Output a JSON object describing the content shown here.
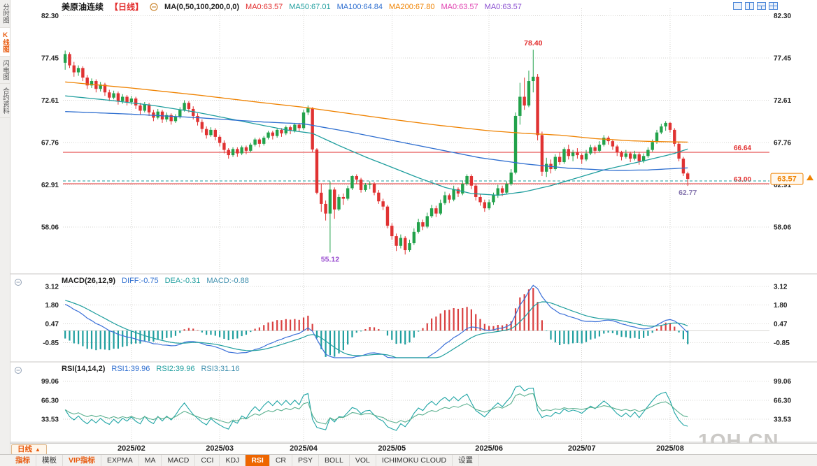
{
  "window": {
    "watermark": "1QH.CN"
  },
  "sidebar": {
    "tabs": [
      {
        "label": "分时图",
        "active": false
      },
      {
        "label": "K线图",
        "active": true
      },
      {
        "label": "闪电图",
        "active": false
      },
      {
        "label": "合约资料",
        "active": false
      }
    ]
  },
  "header": {
    "symbol": "美原油连续",
    "period_tag": "【日线】",
    "ma_settings": "MA(0,50,100,200,0,0)",
    "ma_values": [
      {
        "label": "MA0:63.57",
        "color": "#e22c2c"
      },
      {
        "label": "MA50:67.01",
        "color": "#1f9e9e"
      },
      {
        "label": "MA100:64.84",
        "color": "#2f6fd0"
      },
      {
        "label": "MA200:67.80",
        "color": "#ef8200"
      },
      {
        "label": "MA0:63.57",
        "color": "#e040b0"
      },
      {
        "label": "MA0:63.57",
        "color": "#8a4fd0"
      }
    ],
    "layout_icons": [
      "single-view",
      "dual-view",
      "triple-view",
      "quad-view"
    ]
  },
  "chart_data": {
    "type": "candlestick",
    "symbol": "美原油连续",
    "period": "日线",
    "total_slots": 160,
    "x_labels": [
      "2025/02",
      "2025/03",
      "2025/04",
      "2025/05",
      "2025/06",
      "2025/07",
      "2025/08"
    ],
    "month_start_indices": [
      15,
      35,
      54,
      74,
      96,
      117,
      137
    ],
    "price_ticks": [
      "82.30",
      "77.45",
      "72.61",
      "67.76",
      "62.91",
      "58.06"
    ],
    "colors": {
      "up": "#22a24b",
      "down": "#e03232"
    },
    "candles": [
      [
        76.9,
        78.3,
        76.1,
        77.9
      ],
      [
        77.9,
        78.1,
        76.3,
        76.6
      ],
      [
        76.6,
        77.0,
        75.3,
        75.8
      ],
      [
        75.8,
        76.6,
        75.4,
        76.3
      ],
      [
        76.3,
        76.5,
        74.8,
        75.2
      ],
      [
        75.2,
        75.5,
        73.9,
        74.3
      ],
      [
        74.3,
        75.1,
        74.0,
        74.8
      ],
      [
        74.8,
        75.0,
        73.5,
        73.9
      ],
      [
        73.9,
        74.7,
        73.6,
        74.4
      ],
      [
        74.4,
        74.6,
        73.1,
        73.5
      ],
      [
        73.5,
        73.8,
        72.5,
        72.9
      ],
      [
        72.9,
        73.7,
        72.7,
        73.4
      ],
      [
        73.4,
        73.6,
        72.1,
        72.5
      ],
      [
        72.5,
        73.3,
        72.2,
        73.0
      ],
      [
        73.0,
        73.2,
        72.0,
        72.4
      ],
      [
        72.4,
        73.1,
        72.1,
        72.8
      ],
      [
        72.8,
        73.0,
        71.6,
        72.0
      ],
      [
        72.0,
        72.3,
        71.0,
        71.4
      ],
      [
        71.4,
        72.4,
        71.2,
        72.1
      ],
      [
        72.1,
        72.3,
        70.8,
        71.2
      ],
      [
        71.2,
        71.5,
        70.2,
        70.6
      ],
      [
        70.6,
        71.6,
        70.4,
        71.3
      ],
      [
        71.3,
        71.5,
        70.0,
        70.4
      ],
      [
        70.4,
        71.2,
        70.1,
        70.9
      ],
      [
        70.9,
        71.1,
        69.8,
        70.2
      ],
      [
        70.2,
        71.0,
        70.0,
        70.7
      ],
      [
        70.7,
        71.8,
        70.5,
        71.5
      ],
      [
        71.5,
        72.6,
        71.3,
        72.3
      ],
      [
        72.3,
        72.5,
        71.2,
        71.6
      ],
      [
        71.6,
        71.9,
        70.4,
        70.8
      ],
      [
        70.8,
        71.1,
        69.7,
        70.1
      ],
      [
        70.1,
        70.4,
        68.9,
        69.3
      ],
      [
        69.3,
        69.6,
        68.2,
        68.6
      ],
      [
        68.6,
        69.5,
        68.4,
        69.2
      ],
      [
        69.2,
        69.4,
        68.0,
        68.4
      ],
      [
        68.4,
        68.6,
        67.3,
        67.7
      ],
      [
        67.7,
        68.0,
        66.5,
        66.9
      ],
      [
        66.9,
        67.1,
        65.9,
        66.3
      ],
      [
        66.3,
        67.2,
        66.1,
        67.0
      ],
      [
        67.0,
        67.2,
        66.1,
        66.5
      ],
      [
        66.5,
        67.4,
        66.3,
        67.2
      ],
      [
        67.2,
        67.4,
        66.4,
        66.8
      ],
      [
        66.8,
        67.7,
        66.6,
        67.5
      ],
      [
        67.5,
        68.3,
        67.3,
        68.1
      ],
      [
        68.1,
        68.3,
        67.2,
        67.6
      ],
      [
        67.6,
        68.5,
        67.4,
        68.3
      ],
      [
        68.3,
        69.1,
        68.1,
        68.9
      ],
      [
        68.9,
        69.1,
        68.1,
        68.5
      ],
      [
        68.5,
        69.4,
        68.3,
        69.2
      ],
      [
        69.2,
        69.4,
        68.4,
        68.8
      ],
      [
        68.8,
        69.7,
        68.6,
        69.5
      ],
      [
        69.5,
        69.7,
        68.7,
        69.1
      ],
      [
        69.1,
        70.0,
        68.9,
        69.8
      ],
      [
        69.8,
        70.0,
        69.0,
        69.4
      ],
      [
        69.4,
        71.5,
        69.2,
        71.2
      ],
      [
        71.2,
        72.0,
        70.9,
        71.7
      ],
      [
        71.7,
        71.8,
        66.6,
        66.95
      ],
      [
        66.95,
        67.1,
        61.8,
        61.99
      ],
      [
        61.99,
        63.0,
        59.8,
        60.7
      ],
      [
        60.7,
        61.1,
        58.8,
        59.6
      ],
      [
        59.6,
        63.3,
        55.12,
        62.35
      ],
      [
        62.35,
        62.6,
        59.0,
        60.07
      ],
      [
        60.07,
        61.8,
        59.9,
        61.5
      ],
      [
        61.5,
        61.9,
        60.6,
        61.3
      ],
      [
        61.3,
        62.8,
        61.1,
        62.5
      ],
      [
        62.5,
        64.0,
        62.3,
        63.9
      ],
      [
        63.9,
        64.1,
        63.0,
        63.5
      ],
      [
        63.5,
        63.7,
        62.0,
        62.3
      ],
      [
        62.3,
        63.1,
        62.1,
        62.9
      ],
      [
        62.9,
        63.3,
        62.4,
        63.0
      ],
      [
        63.0,
        63.2,
        61.7,
        62.0
      ],
      [
        62.0,
        62.3,
        60.7,
        61.0
      ],
      [
        61.0,
        61.3,
        60.0,
        60.4
      ],
      [
        60.4,
        60.6,
        57.9,
        58.2
      ],
      [
        58.2,
        58.5,
        56.6,
        57.0
      ],
      [
        57.0,
        57.3,
        55.3,
        55.9
      ],
      [
        55.9,
        57.2,
        55.6,
        56.8
      ],
      [
        56.8,
        57.0,
        54.9,
        55.4
      ],
      [
        55.4,
        56.6,
        55.2,
        56.2
      ],
      [
        56.2,
        57.9,
        56.0,
        57.5
      ],
      [
        57.5,
        59.0,
        57.3,
        58.6
      ],
      [
        58.6,
        58.9,
        57.7,
        58.1
      ],
      [
        58.1,
        59.7,
        57.9,
        59.3
      ],
      [
        59.3,
        60.6,
        59.1,
        60.2
      ],
      [
        60.2,
        60.5,
        59.2,
        59.6
      ],
      [
        59.6,
        61.2,
        59.4,
        60.8
      ],
      [
        60.8,
        62.1,
        60.6,
        61.7
      ],
      [
        61.7,
        61.9,
        60.8,
        61.2
      ],
      [
        61.2,
        62.8,
        61.0,
        62.4
      ],
      [
        62.4,
        62.6,
        61.5,
        61.9
      ],
      [
        61.9,
        63.4,
        61.7,
        63.0
      ],
      [
        63.0,
        64.1,
        62.8,
        63.9
      ],
      [
        63.9,
        64.1,
        62.4,
        62.8
      ],
      [
        62.8,
        63.0,
        61.1,
        61.5
      ],
      [
        61.5,
        61.8,
        60.5,
        60.9
      ],
      [
        60.9,
        61.2,
        59.8,
        60.2
      ],
      [
        60.2,
        61.2,
        60.0,
        60.9
      ],
      [
        60.9,
        62.0,
        60.6,
        61.7
      ],
      [
        61.7,
        62.9,
        61.4,
        62.5
      ],
      [
        62.5,
        62.8,
        61.6,
        62.0
      ],
      [
        62.0,
        63.3,
        61.8,
        63.0
      ],
      [
        63.0,
        64.7,
        62.8,
        64.3
      ],
      [
        64.3,
        71.2,
        64.1,
        70.8
      ],
      [
        70.8,
        74.6,
        69.8,
        73.0
      ],
      [
        73.0,
        75.2,
        71.5,
        72.0
      ],
      [
        72.0,
        76.0,
        71.8,
        74.8
      ],
      [
        74.8,
        78.4,
        73.5,
        75.3
      ],
      [
        75.3,
        75.6,
        68.0,
        68.6
      ],
      [
        68.6,
        69.0,
        63.9,
        64.4
      ],
      [
        64.4,
        66.0,
        63.8,
        65.3
      ],
      [
        65.3,
        65.8,
        64.2,
        64.7
      ],
      [
        64.7,
        66.4,
        64.5,
        66.1
      ],
      [
        66.1,
        66.6,
        65.2,
        65.5
      ],
      [
        65.5,
        67.2,
        65.3,
        67.0
      ],
      [
        67.0,
        67.5,
        65.8,
        66.2
      ],
      [
        66.2,
        66.9,
        65.6,
        66.6
      ],
      [
        66.6,
        67.1,
        65.9,
        66.3
      ],
      [
        66.3,
        66.5,
        65.3,
        65.8
      ],
      [
        65.8,
        66.9,
        65.6,
        66.5
      ],
      [
        66.5,
        67.5,
        66.3,
        67.2
      ],
      [
        67.2,
        67.4,
        66.4,
        66.8
      ],
      [
        66.8,
        67.9,
        66.6,
        67.5
      ],
      [
        67.5,
        68.6,
        67.3,
        68.3
      ],
      [
        68.3,
        68.5,
        67.5,
        67.9
      ],
      [
        67.9,
        68.1,
        66.9,
        67.3
      ],
      [
        67.3,
        67.5,
        66.2,
        66.6
      ],
      [
        66.6,
        66.8,
        65.7,
        66.1
      ],
      [
        66.1,
        66.9,
        65.9,
        66.5
      ],
      [
        66.5,
        66.7,
        65.5,
        65.9
      ],
      [
        65.9,
        66.8,
        65.7,
        66.4
      ],
      [
        66.4,
        66.6,
        65.2,
        65.6
      ],
      [
        65.6,
        66.5,
        65.4,
        66.2
      ],
      [
        66.2,
        67.2,
        66.0,
        66.9
      ],
      [
        66.9,
        68.1,
        66.7,
        67.8
      ],
      [
        67.8,
        69.2,
        67.6,
        68.9
      ],
      [
        68.9,
        69.9,
        68.7,
        69.6
      ],
      [
        69.6,
        70.2,
        69.1,
        70.0
      ],
      [
        70.0,
        70.1,
        68.9,
        69.2
      ],
      [
        69.2,
        69.4,
        67.3,
        67.6
      ],
      [
        67.6,
        67.8,
        65.6,
        65.9
      ],
      [
        65.9,
        66.1,
        63.9,
        64.2
      ],
      [
        64.2,
        64.4,
        62.77,
        63.57
      ]
    ],
    "ma_lines": [
      {
        "name": "MA50",
        "color": "#1f9e9e",
        "anchors": [
          [
            0,
            73.1
          ],
          [
            10,
            72.6
          ],
          [
            20,
            72.0
          ],
          [
            30,
            71.2
          ],
          [
            40,
            70.2
          ],
          [
            50,
            69.2
          ],
          [
            56,
            68.8
          ],
          [
            62,
            67.4
          ],
          [
            68,
            66.1
          ],
          [
            74,
            64.9
          ],
          [
            80,
            63.7
          ],
          [
            86,
            62.6
          ],
          [
            92,
            61.9
          ],
          [
            98,
            61.7
          ],
          [
            104,
            62.1
          ],
          [
            110,
            62.8
          ],
          [
            116,
            63.7
          ],
          [
            122,
            64.6
          ],
          [
            128,
            65.3
          ],
          [
            134,
            66.0
          ],
          [
            138,
            66.5
          ],
          [
            141,
            67.0
          ]
        ]
      },
      {
        "name": "MA100",
        "color": "#2f6fd0",
        "anchors": [
          [
            0,
            71.3
          ],
          [
            15,
            71.0
          ],
          [
            30,
            70.6
          ],
          [
            45,
            70.1
          ],
          [
            54,
            69.9
          ],
          [
            64,
            69.0
          ],
          [
            74,
            68.0
          ],
          [
            84,
            67.0
          ],
          [
            94,
            66.0
          ],
          [
            104,
            65.3
          ],
          [
            114,
            64.8
          ],
          [
            124,
            64.55
          ],
          [
            132,
            64.6
          ],
          [
            141,
            64.84
          ]
        ]
      },
      {
        "name": "MA200",
        "color": "#ef8200",
        "anchors": [
          [
            0,
            74.7
          ],
          [
            15,
            74.0
          ],
          [
            30,
            73.2
          ],
          [
            45,
            72.3
          ],
          [
            54,
            71.8
          ],
          [
            64,
            71.1
          ],
          [
            74,
            70.4
          ],
          [
            85,
            69.7
          ],
          [
            96,
            69.1
          ],
          [
            104,
            68.8
          ],
          [
            112,
            68.6
          ],
          [
            120,
            68.2
          ],
          [
            128,
            67.95
          ],
          [
            134,
            67.85
          ],
          [
            141,
            67.8
          ]
        ]
      }
    ],
    "levels": [
      {
        "value": 66.64,
        "label": "66.64",
        "color": "#e22c2c",
        "style": "solid"
      },
      {
        "value": 63.0,
        "label": "63.00",
        "color": "#e22c2c",
        "style": "solid"
      },
      {
        "value": 63.33,
        "label": "",
        "color": "#1f9e9e",
        "style": "dashed"
      }
    ],
    "annotations": [
      {
        "index": 106,
        "price": 78.4,
        "text": "78.40",
        "color": "#e22c2c",
        "pos": "above"
      },
      {
        "index": 60,
        "price": 55.12,
        "text": "55.12",
        "color": "#9a4fd0",
        "pos": "below"
      },
      {
        "index": 141,
        "price": 62.77,
        "text": "62.77",
        "color": "#8878b0",
        "pos": "below"
      }
    ],
    "last_price": {
      "value": "63.57",
      "color": "#ef8200"
    }
  },
  "macd_panel": {
    "title": "MACD(26,12,9)",
    "readouts": [
      {
        "label": "DIFF:-0.75",
        "color": "#2f6fd0"
      },
      {
        "label": "DEA:-0.31",
        "color": "#1f9e9e"
      },
      {
        "label": "MACD:-0.88",
        "color": "#3f8fae"
      }
    ],
    "ticks": [
      "3.12",
      "1.80",
      "0.47",
      "-0.85"
    ],
    "hist_up_color": "#d94040",
    "hist_down_color": "#1f9e9e"
  },
  "rsi_panel": {
    "title": "RSI(14,14,2)",
    "readouts": [
      {
        "label": "RSI1:39.96",
        "color": "#2f6fd0"
      },
      {
        "label": "RSI2:39.96",
        "color": "#1f9e9e"
      },
      {
        "label": "RSI3:31.16",
        "color": "#3f8fae"
      }
    ],
    "ticks": [
      "99.06",
      "66.30",
      "33.53"
    ]
  },
  "bottom": {
    "period_button": {
      "label": "日线",
      "arrow": "▲"
    },
    "toolbar": [
      {
        "label": "指标",
        "accent": true
      },
      {
        "label": "模板"
      },
      {
        "label": "VIP指标",
        "accent": true
      },
      {
        "label": "EXPMA"
      },
      {
        "label": "MA"
      },
      {
        "label": "MACD"
      },
      {
        "label": "CCI"
      },
      {
        "label": "KDJ"
      },
      {
        "label": "RSI",
        "selected": true
      },
      {
        "label": "CR"
      },
      {
        "label": "PSY"
      },
      {
        "label": "BOLL"
      },
      {
        "label": "VOL"
      },
      {
        "label": "ICHIMOKU CLOUD"
      },
      {
        "label": "设置"
      }
    ]
  }
}
